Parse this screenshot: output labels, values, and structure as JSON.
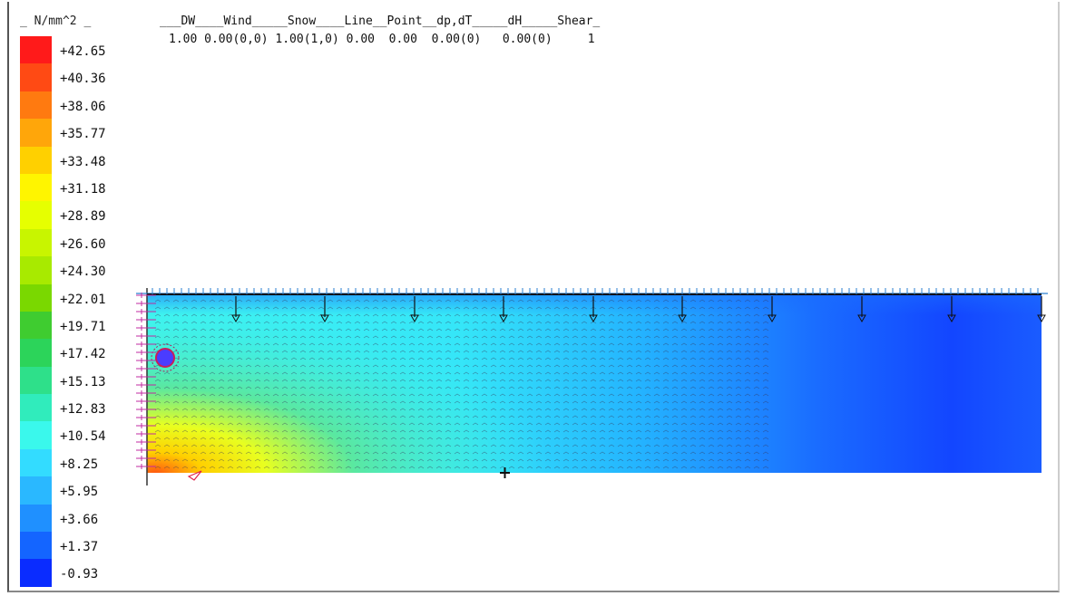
{
  "legend": {
    "unit": "_ N/mm^2 _",
    "values": [
      "+42.65",
      "+40.36",
      "+38.06",
      "+35.77",
      "+33.48",
      "+31.18",
      "+28.89",
      "+26.60",
      "+24.30",
      "+22.01",
      "+19.71",
      "+17.42",
      "+15.13",
      "+12.83",
      "+10.54",
      "+8.25",
      "+5.95",
      "+3.66",
      "+1.37",
      "-0.93"
    ],
    "colors": [
      "#ff1a1a",
      "#ff4a14",
      "#ff7a10",
      "#ffa60a",
      "#ffd000",
      "#fff500",
      "#e6ff00",
      "#c8f500",
      "#a8ea00",
      "#7ad800",
      "#3fcc30",
      "#2cd45a",
      "#2ee08a",
      "#30ecbc",
      "#3af8ec",
      "#33dcff",
      "#2ab8ff",
      "#1f90ff",
      "#1465ff",
      "#0a2cff"
    ]
  },
  "header": {
    "labels": "___DW____Wind_____Snow____Line__Point__dp,dT_____dH_____Shear_",
    "values": "1.00 0.00(0,0) 1.00(1,0) 0.00  0.00  0.00(0)   0.00(0)     1"
  }
}
